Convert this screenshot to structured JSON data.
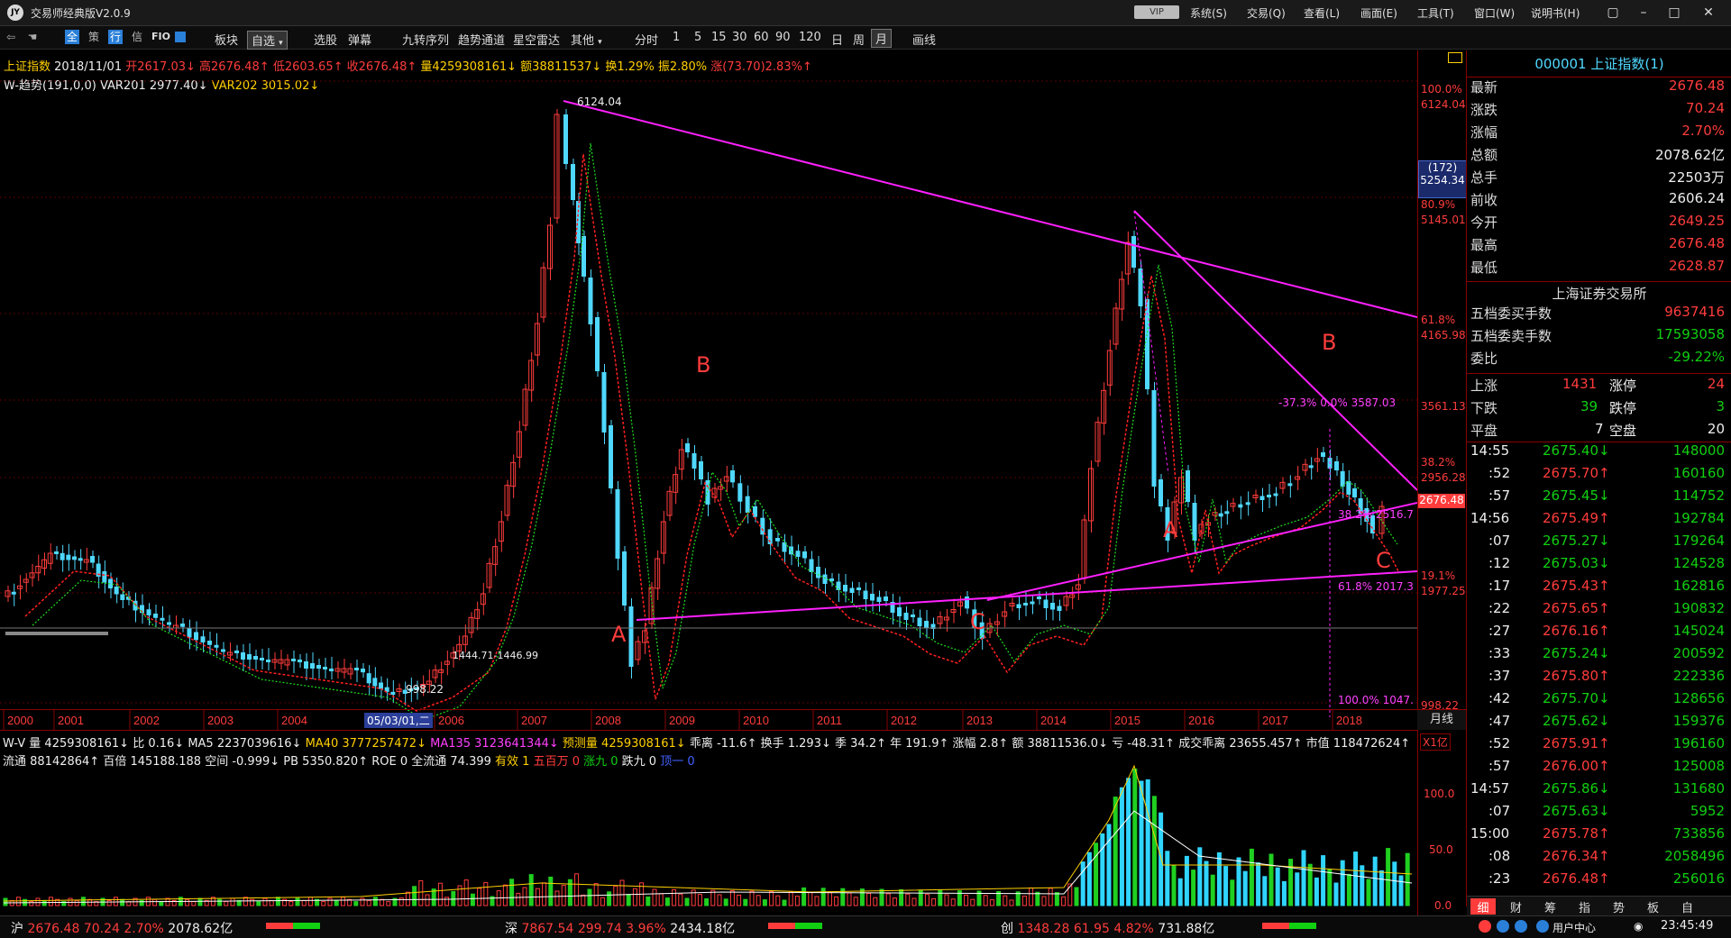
{
  "app": {
    "title": "交易师经典版V2.0.9",
    "logo_text": "JY",
    "vip_badge": "VIP",
    "menus": [
      "系统(S)",
      "交易(Q)",
      "查看(L)",
      "画面(E)",
      "工具(T)",
      "窗口(W)",
      "说明书(H)"
    ]
  },
  "toolbar": {
    "icons": [
      "back-icon",
      "hand-icon"
    ],
    "chips": [
      "全",
      "策",
      "行",
      "信"
    ],
    "fio": "FIO",
    "items": [
      "板块",
      "自选",
      "选股",
      "弹幕",
      "九转序列",
      "趋势通道",
      "星空雷达",
      "其他"
    ],
    "periods": [
      "分时",
      "1",
      "5",
      "15",
      "30",
      "60",
      "90",
      "120",
      "日",
      "周",
      "月"
    ],
    "active_period": "月",
    "draw": "画线"
  },
  "chart": {
    "info_line1": {
      "name": "上证指数",
      "date": "2018/11/01",
      "open": "开2617.03↓",
      "high": "高2676.48↑",
      "low": "低2603.65↑",
      "close": "收2676.48↑",
      "vol": "量4259308161↓",
      "amount": "额38811537↓",
      "turnover": "换1.29%",
      "amp": "振2.80%",
      "change": "涨(73.70)2.83%↑"
    },
    "info_line2": {
      "name": "W-趋势(191,0,0)",
      "var201": "VAR201 2977.40↓",
      "var202": "VAR202 3015.02↓"
    },
    "price_labels": [
      {
        "pct": "100.0%",
        "price": "6124.04"
      },
      {
        "pct": "80.9%",
        "price": "5145.01"
      },
      {
        "pct": "61.8%",
        "price": "4165.98"
      },
      {
        "pct": "",
        "price": "3561.13"
      },
      {
        "pct": "38.2%",
        "price": "2956.28"
      },
      {
        "pct": "19.1%",
        "price": "1977.25"
      },
      {
        "pct": "",
        "price": "998.22"
      }
    ],
    "cursor_price": {
      "top": "(172)",
      "bottom": "5254.34"
    },
    "last_price_tag": "2676.48",
    "annotations": {
      "peak": "6124.04",
      "trough": "998.22",
      "range": "1444.71-1446.99",
      "fib_b": "-37.3%  0.0% 3587.03",
      "fib_c1": "38.2% 2516.7",
      "fib_c2": "61.8% 2017.3",
      "fib_bottom": "100.0% 1047."
    },
    "wave_labels": [
      "A",
      "B",
      "C",
      "A",
      "B",
      "C"
    ],
    "time_axis": [
      "2000",
      "2001",
      "2002",
      "2003",
      "2004",
      "2006",
      "2007",
      "2008",
      "2009",
      "2010",
      "2011",
      "2012",
      "2013",
      "2014",
      "2015",
      "2016",
      "2017",
      "2018"
    ],
    "time_cursor": "05/03/01,二",
    "period_label": "月线",
    "colors": {
      "up": "#ff3c3c",
      "down": "#4fd8ff",
      "line": "#ff20ff",
      "ma": "#ff2020",
      "ma2": "#20e020"
    }
  },
  "volume": {
    "line1": [
      "W-V",
      "量 4259308161↓",
      "比 0.16↓",
      "MA5 2237039616↓",
      "MA40 3777257472↓",
      "MA135 3123641344↓",
      "预测量 4259308161↓",
      "乖离 -11.6↑",
      "换手 1.293↓",
      "季 34.2↑",
      "年 191.9↑",
      "涨幅 2.8↑",
      "额 38811536.0↓",
      "亏 -48.31↑",
      "成交乖离 23655.457↑",
      "市值 118472624↑"
    ],
    "line2": [
      "流通 88142864↑",
      "百倍 145188.188",
      "空间 -0.999↓",
      "PB 5350.820↑",
      "ROE 0",
      "全流通 74.399",
      "有效 1",
      "五百万 0",
      "涨九 0",
      "跌九 0",
      "顶一 0"
    ],
    "unit": "X1亿",
    "axis": [
      "100.0",
      "50.0",
      "0.0"
    ]
  },
  "quote": {
    "code": "000001",
    "name": "上证指数(1)",
    "rows": [
      {
        "label": "最新",
        "value": "2676.48",
        "color": "red"
      },
      {
        "label": "涨跌",
        "value": "70.24",
        "color": "red"
      },
      {
        "label": "涨幅",
        "value": "2.70%",
        "color": "red"
      },
      {
        "label": "总额",
        "value": "2078.62亿",
        "color": "white"
      },
      {
        "label": "总手",
        "value": "22503万",
        "color": "white"
      },
      {
        "label": "前收",
        "value": "2606.24",
        "color": "white"
      },
      {
        "label": "今开",
        "value": "2649.25",
        "color": "red"
      },
      {
        "label": "最高",
        "value": "2676.48",
        "color": "red"
      },
      {
        "label": "最低",
        "value": "2628.87",
        "color": "red"
      }
    ],
    "exchange": "上海证券交易所",
    "rows2": [
      {
        "label": "五档委买手数",
        "value": "9637416",
        "color": "red"
      },
      {
        "label": "五档委卖手数",
        "value": "17593058",
        "color": "green"
      },
      {
        "label": "委比",
        "value": "-29.22%",
        "color": "green"
      }
    ],
    "breadth": [
      {
        "label": "上涨",
        "num": "1431",
        "label2": "涨停",
        "num2": "24"
      },
      {
        "label": "下跌",
        "num": "39",
        "label2": "跌停",
        "num2": "3"
      },
      {
        "label": "平盘",
        "num": "7",
        "label2": "空盘",
        "num2": "20"
      }
    ],
    "ticks": [
      {
        "time": "14:55",
        "price": "2675.40↓",
        "vol": "148000"
      },
      {
        "time": ":52",
        "price": "2675.70↑",
        "vol": "160160"
      },
      {
        "time": ":57",
        "price": "2675.45↓",
        "vol": "114752"
      },
      {
        "time": "14:56",
        "price": "2675.49↑",
        "vol": "192784"
      },
      {
        "time": ":07",
        "price": "2675.27↓",
        "vol": "179264"
      },
      {
        "time": ":12",
        "price": "2675.03↓",
        "vol": "124528"
      },
      {
        "time": ":17",
        "price": "2675.43↑",
        "vol": "162816"
      },
      {
        "time": ":22",
        "price": "2675.65↑",
        "vol": "190832"
      },
      {
        "time": ":27",
        "price": "2676.16↑",
        "vol": "145024"
      },
      {
        "time": ":33",
        "price": "2675.24↓",
        "vol": "200592"
      },
      {
        "time": ":37",
        "price": "2675.80↑",
        "vol": "222336"
      },
      {
        "time": ":42",
        "price": "2675.70↓",
        "vol": "128656"
      },
      {
        "time": ":47",
        "price": "2675.62↓",
        "vol": "159376"
      },
      {
        "time": ":52",
        "price": "2675.91↑",
        "vol": "196160"
      },
      {
        "time": ":57",
        "price": "2676.00↑",
        "vol": "125008"
      },
      {
        "time": "14:57",
        "price": "2675.86↓",
        "vol": "131680"
      },
      {
        "time": ":07",
        "price": "2675.63↓",
        "vol": "5952"
      },
      {
        "time": "15:00",
        "price": "2675.78↑",
        "vol": "733856"
      },
      {
        "time": ":08",
        "price": "2676.34↑",
        "vol": "2058496"
      },
      {
        "time": ":23",
        "price": "2676.48↑",
        "vol": "256016"
      }
    ],
    "tabs": [
      "细",
      "财",
      "筹",
      "指",
      "势",
      "板",
      "自"
    ]
  },
  "status": {
    "sh": {
      "name": "沪",
      "price": "2676.48",
      "chg": "70.24",
      "pct": "2.70%",
      "amt": "2078.62亿"
    },
    "sz": {
      "name": "深",
      "price": "7867.54",
      "chg": "299.74",
      "pct": "3.96%",
      "amt": "2434.18亿"
    },
    "cy": {
      "name": "创",
      "price": "1348.28",
      "chg": "61.95",
      "pct": "4.82%",
      "amt": "731.88亿"
    },
    "user_center": "用户中心",
    "clock": "23:45:49"
  }
}
